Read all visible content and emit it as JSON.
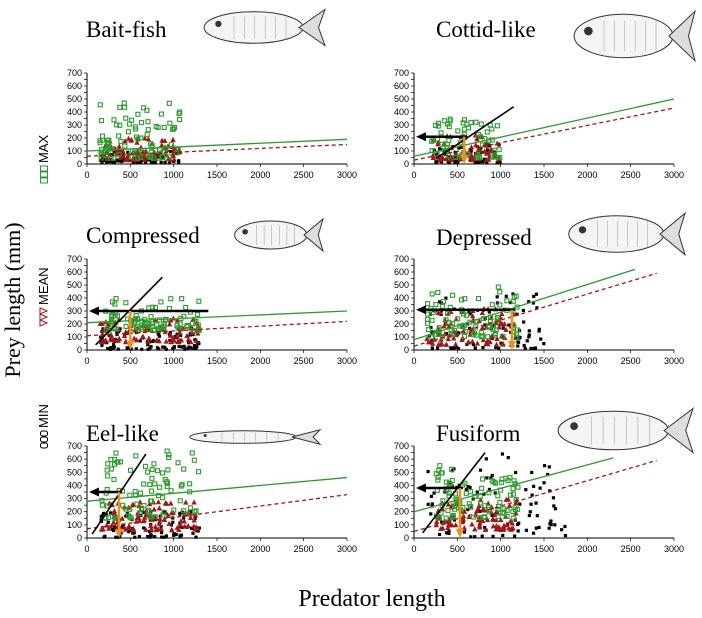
{
  "figure": {
    "ylabel": "Prey length (mm)",
    "xlabel": "Predator length",
    "legend": [
      {
        "symbol": "squares",
        "label": "MAX",
        "color": "#2e9a2e"
      },
      {
        "symbol": "triangles",
        "label": "MEAN",
        "color": "#a01818"
      },
      {
        "symbol": "circles",
        "label": "MIN",
        "color": "#000000"
      }
    ],
    "colors": {
      "max": "#2e9a2e",
      "mean": "#a01818",
      "min": "#000000",
      "arrow_v": "#f0901a",
      "arrow_h": "#000000"
    },
    "fish_icons": [
      "bait-fish-drawing",
      "cottid-drawing",
      "compressed-fish-drawing",
      "flatfish-drawing",
      "eel-drawing",
      "fusiform-fish-drawing"
    ]
  },
  "chart_data": [
    {
      "type": "scatter",
      "title": "Bait-fish",
      "xlim": [
        0,
        3000
      ],
      "ylim": [
        0,
        700
      ],
      "xticks": [
        "0",
        "500",
        "1000",
        "1500",
        "2000",
        "2500",
        "3000"
      ],
      "yticks": [
        "0",
        "50",
        "100",
        "150",
        "200",
        "250",
        "300",
        "350",
        "400",
        "450",
        "500",
        "550",
        "600",
        "650",
        "700"
      ],
      "series": [
        {
          "name": "MAX",
          "fit": {
            "x": [
              0,
              3000
            ],
            "y": [
              100,
              190
            ]
          },
          "points": {
            "x_range": [
              150,
              1100
            ],
            "y_range": [
              45,
              470
            ],
            "count": 90
          }
        },
        {
          "name": "MEAN",
          "fit": {
            "x": [
              0,
              3000
            ],
            "y": [
              60,
              150
            ]
          },
          "points": {
            "x_range": [
              150,
              1100
            ],
            "y_range": [
              30,
              200
            ],
            "count": 80
          }
        },
        {
          "name": "MIN",
          "points": {
            "x_range": [
              150,
              1100
            ],
            "y_range": [
              10,
              100
            ],
            "count": 80
          }
        }
      ]
    },
    {
      "type": "scatter",
      "title": "Cottid-like",
      "xlim": [
        0,
        3000
      ],
      "ylim": [
        0,
        700
      ],
      "xticks": [
        "0",
        "500",
        "1000",
        "1500",
        "2000",
        "2500",
        "3000"
      ],
      "yticks": [
        "0",
        "50",
        "100",
        "150",
        "200",
        "250",
        "300",
        "350",
        "400",
        "450",
        "500",
        "550",
        "600",
        "650",
        "700"
      ],
      "threshold": {
        "x": 580,
        "y": 210
      },
      "series": [
        {
          "name": "MAX",
          "fit": {
            "x": [
              0,
              3000
            ],
            "y": [
              60,
              500
            ]
          },
          "points": {
            "x_range": [
              200,
              1000
            ],
            "y_range": [
              50,
              350
            ],
            "count": 60
          }
        },
        {
          "name": "MEAN",
          "fit": {
            "x": [
              0,
              3000
            ],
            "y": [
              30,
              430
            ]
          },
          "points": {
            "x_range": [
              200,
              1000
            ],
            "y_range": [
              30,
              230
            ],
            "count": 60
          }
        },
        {
          "name": "MIN",
          "fit": {
            "x": [
              250,
              1150
            ],
            "y": [
              40,
              440
            ]
          },
          "points": {
            "x_range": [
              200,
              1000
            ],
            "y_range": [
              10,
              150
            ],
            "count": 60
          }
        }
      ]
    },
    {
      "type": "scatter",
      "title": "Compressed",
      "xlim": [
        0,
        3000
      ],
      "ylim": [
        0,
        700
      ],
      "xticks": [
        "0",
        "500",
        "1000",
        "1500",
        "2000",
        "2500",
        "3000"
      ],
      "yticks": [
        "0",
        "50",
        "100",
        "150",
        "200",
        "250",
        "300",
        "350",
        "400",
        "450",
        "500",
        "550",
        "600",
        "650",
        "700"
      ],
      "threshold": {
        "x": 500,
        "y": 300
      },
      "series": [
        {
          "name": "MAX",
          "fit": {
            "x": [
              0,
              3000
            ],
            "y": [
              210,
              300
            ]
          },
          "points": {
            "x_range": [
              150,
              1300
            ],
            "y_range": [
              150,
              400
            ],
            "count": 85
          }
        },
        {
          "name": "MEAN",
          "fit": {
            "x": [
              0,
              3000
            ],
            "y": [
              110,
              220
            ]
          },
          "points": {
            "x_range": [
              150,
              1300
            ],
            "y_range": [
              60,
              250
            ],
            "count": 85
          }
        },
        {
          "name": "MIN",
          "fit": {
            "x": [
              100,
              870
            ],
            "y": [
              40,
              560
            ]
          },
          "points": {
            "x_range": [
              150,
              1300
            ],
            "y_range": [
              5,
              180
            ],
            "count": 85
          }
        }
      ]
    },
    {
      "type": "scatter",
      "title": "Depressed",
      "xlim": [
        0,
        3000
      ],
      "ylim": [
        0,
        700
      ],
      "xticks": [
        "0",
        "500",
        "1000",
        "1500",
        "2000",
        "2500",
        "3000"
      ],
      "yticks": [
        "0",
        "50",
        "100",
        "150",
        "200",
        "250",
        "300",
        "350",
        "400",
        "450",
        "500",
        "550",
        "600",
        "650",
        "700"
      ],
      "threshold": {
        "x": 1130,
        "y": 310
      },
      "series": [
        {
          "name": "MAX",
          "fit": {
            "x": [
              0,
              2550
            ],
            "y": [
              80,
              620
            ]
          },
          "points": {
            "x_range": [
              150,
              1200
            ],
            "y_range": [
              100,
              500
            ],
            "count": 85
          }
        },
        {
          "name": "MEAN",
          "fit": {
            "x": [
              0,
              2800
            ],
            "y": [
              30,
              590
            ]
          },
          "points": {
            "x_range": [
              150,
              1200
            ],
            "y_range": [
              40,
              320
            ],
            "count": 85
          }
        },
        {
          "name": "MIN",
          "points": {
            "x_range": [
              150,
              1500
            ],
            "y_range": [
              10,
              450
            ],
            "count": 85
          }
        }
      ]
    },
    {
      "type": "scatter",
      "title": "Eel-like",
      "xlim": [
        0,
        3000
      ],
      "ylim": [
        0,
        700
      ],
      "xticks": [
        "0",
        "500",
        "1000",
        "1500",
        "2000",
        "2500",
        "3000"
      ],
      "yticks": [
        "0",
        "50",
        "100",
        "150",
        "200",
        "250",
        "300",
        "350",
        "400",
        "450",
        "500",
        "550",
        "600",
        "650",
        "700"
      ],
      "threshold": {
        "x": 370,
        "y": 350
      },
      "series": [
        {
          "name": "MAX",
          "fit": {
            "x": [
              0,
              3000
            ],
            "y": [
              280,
              460
            ]
          },
          "points": {
            "x_range": [
              150,
              1300
            ],
            "y_range": [
              150,
              670
            ],
            "count": 90
          }
        },
        {
          "name": "MEAN",
          "fit": {
            "x": [
              0,
              3000
            ],
            "y": [
              70,
              330
            ]
          },
          "points": {
            "x_range": [
              150,
              1300
            ],
            "y_range": [
              60,
              280
            ],
            "count": 90
          }
        },
        {
          "name": "MIN",
          "fit": {
            "x": [
              60,
              680
            ],
            "y": [
              30,
              640
            ]
          },
          "points": {
            "x_range": [
              150,
              1300
            ],
            "y_range": [
              5,
              200
            ],
            "count": 90
          }
        }
      ]
    },
    {
      "type": "scatter",
      "title": "Fusiform",
      "xlim": [
        0,
        3000
      ],
      "ylim": [
        0,
        700
      ],
      "xticks": [
        "0",
        "500",
        "1000",
        "1500",
        "2000",
        "2500",
        "3000"
      ],
      "yticks": [
        "0",
        "50",
        "100",
        "150",
        "200",
        "250",
        "300",
        "350",
        "400",
        "450",
        "500",
        "550",
        "600",
        "650",
        "700"
      ],
      "threshold": {
        "x": 530,
        "y": 380
      },
      "series": [
        {
          "name": "MAX",
          "fit": {
            "x": [
              0,
              2300
            ],
            "y": [
              200,
              610
            ]
          },
          "points": {
            "x_range": [
              250,
              1200
            ],
            "y_range": [
              150,
              560
            ],
            "count": 90
          }
        },
        {
          "name": "MEAN",
          "fit": {
            "x": [
              0,
              2800
            ],
            "y": [
              50,
              590
            ]
          },
          "points": {
            "x_range": [
              250,
              1200
            ],
            "y_range": [
              60,
              300
            ],
            "count": 90
          }
        },
        {
          "name": "MIN",
          "fit": {
            "x": [
              100,
              820
            ],
            "y": [
              40,
              650
            ]
          },
          "points": {
            "x_range": [
              150,
              1800
            ],
            "y_range": [
              5,
              640
            ],
            "count": 90
          }
        }
      ]
    }
  ]
}
